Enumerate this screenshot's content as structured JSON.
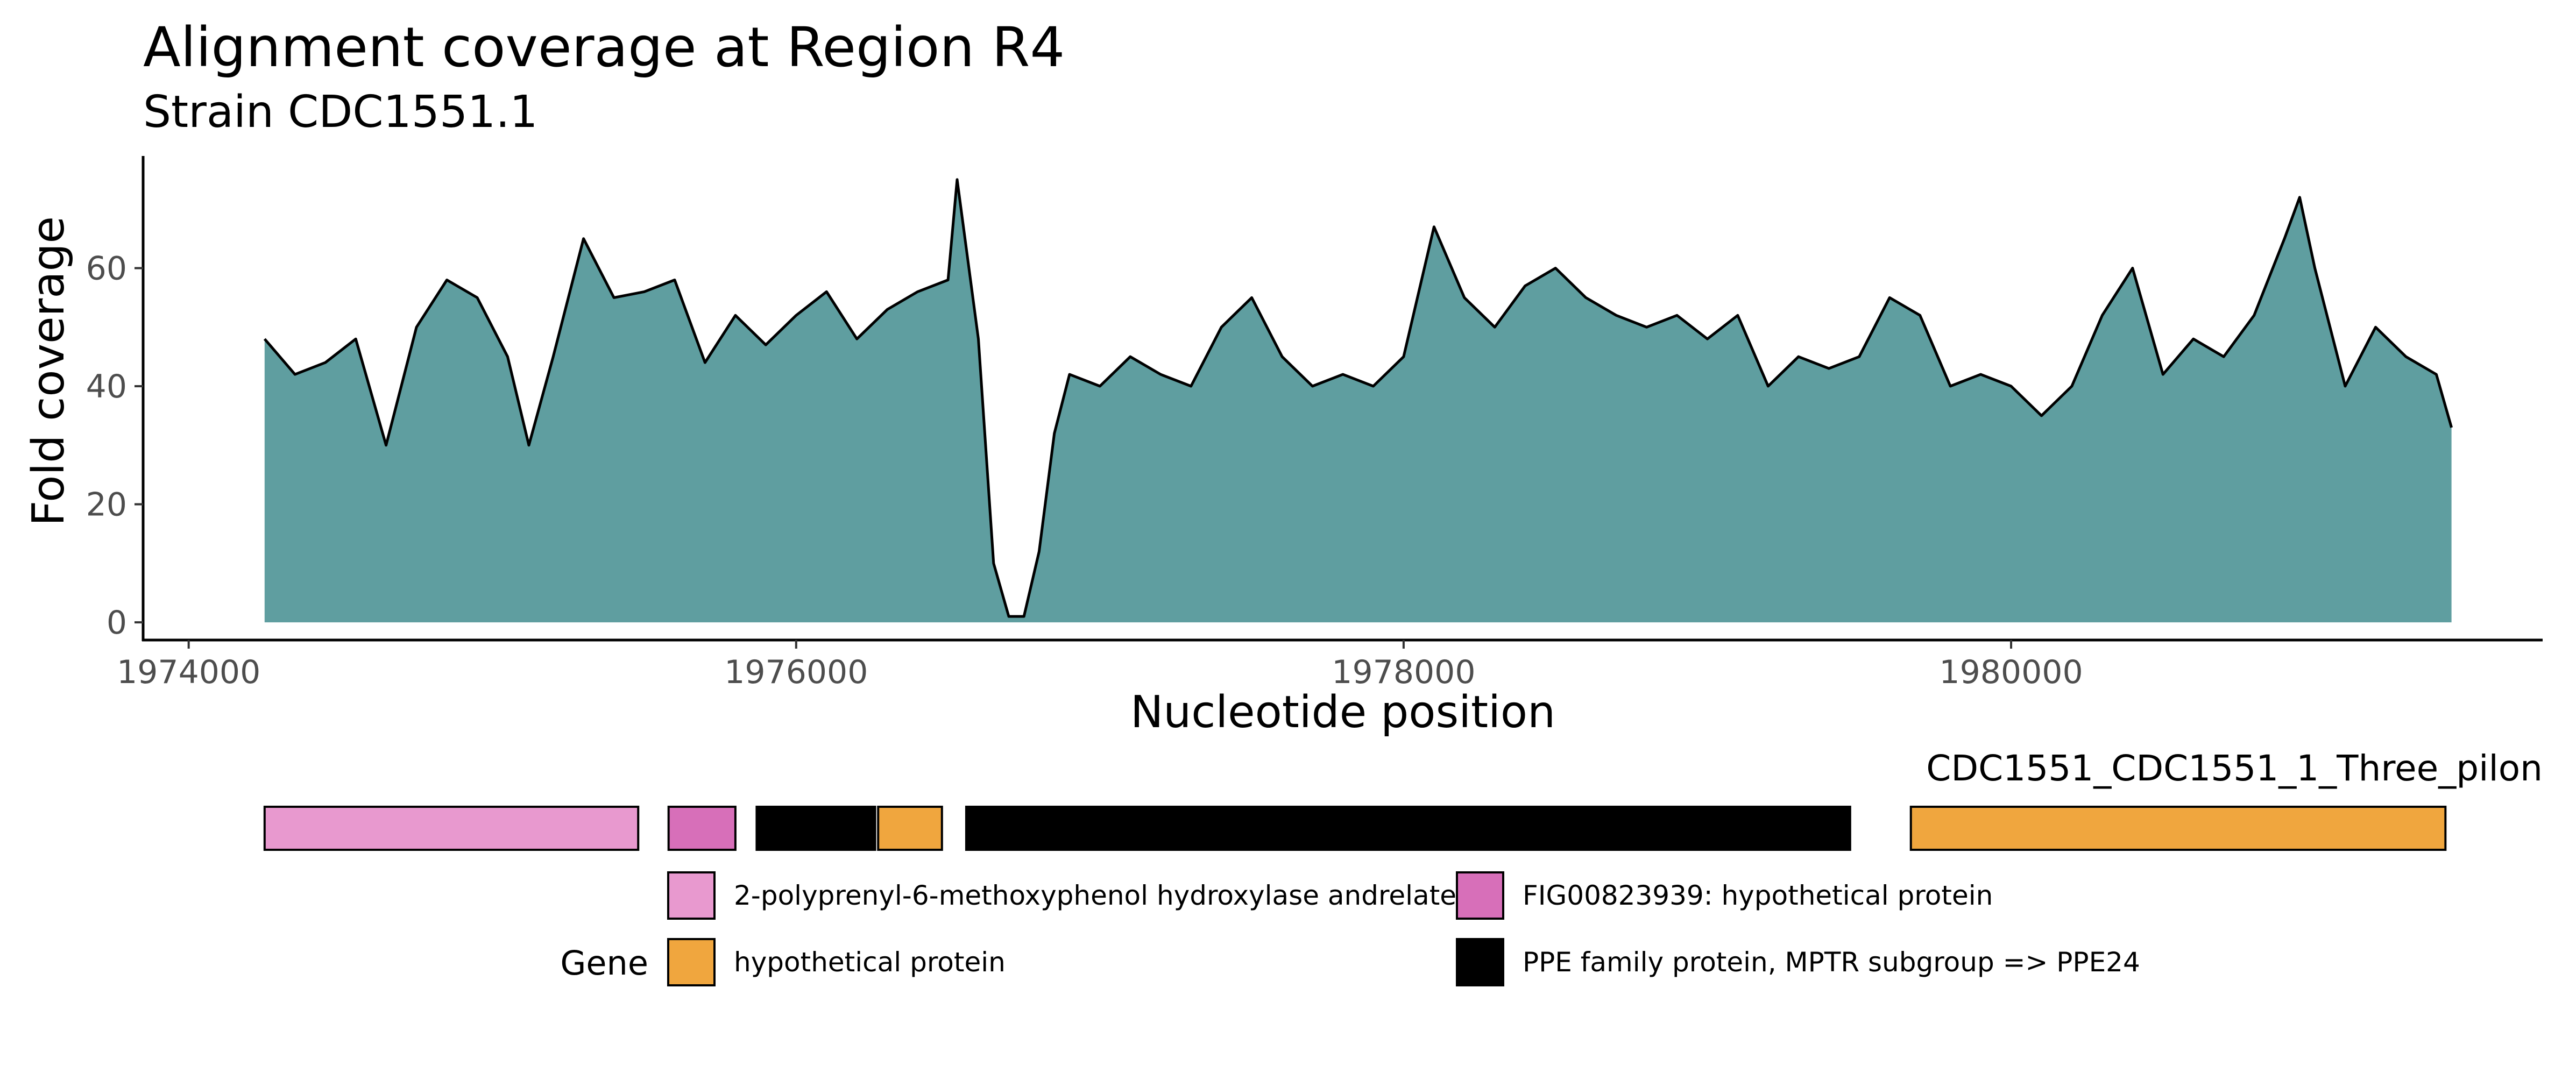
{
  "chart_data": {
    "type": "area",
    "title": "Alignment coverage at Region R4",
    "subtitle": "Strain CDC1551.1",
    "xlabel": "Nucleotide position",
    "ylabel": "Fold coverage",
    "xlim": [
      1973850,
      1981750
    ],
    "ylim": [
      -3,
      79
    ],
    "x_ticks": [
      1974000,
      1976000,
      1978000,
      1980000
    ],
    "y_ticks": [
      0,
      20,
      40,
      60
    ],
    "grid": false,
    "fill_color": "#5f9ea0",
    "line_color": "#000000",
    "x": [
      1974250,
      1974350,
      1974450,
      1974550,
      1974650,
      1974750,
      1974850,
      1974950,
      1975050,
      1975120,
      1975200,
      1975300,
      1975400,
      1975500,
      1975600,
      1975700,
      1975800,
      1975900,
      1976000,
      1976100,
      1976200,
      1976300,
      1976400,
      1976500,
      1976530,
      1976600,
      1976650,
      1976700,
      1976750,
      1976800,
      1976850,
      1976900,
      1977000,
      1977100,
      1977200,
      1977300,
      1977400,
      1977500,
      1977600,
      1977700,
      1977800,
      1977900,
      1978000,
      1978100,
      1978200,
      1978300,
      1978400,
      1978500,
      1978600,
      1978700,
      1978800,
      1978900,
      1979000,
      1979100,
      1979200,
      1979300,
      1979400,
      1979500,
      1979600,
      1979700,
      1979800,
      1979900,
      1980000,
      1980100,
      1980200,
      1980300,
      1980400,
      1980500,
      1980600,
      1980700,
      1980800,
      1980900,
      1980950,
      1981000,
      1981100,
      1981200,
      1981300,
      1981400,
      1981450
    ],
    "y": [
      48,
      42,
      44,
      48,
      30,
      50,
      58,
      55,
      45,
      30,
      45,
      65,
      55,
      56,
      58,
      44,
      52,
      47,
      52,
      56,
      48,
      53,
      56,
      58,
      75,
      48,
      10,
      1,
      1,
      12,
      32,
      42,
      40,
      45,
      42,
      40,
      50,
      55,
      45,
      40,
      42,
      40,
      45,
      67,
      55,
      50,
      57,
      60,
      55,
      52,
      50,
      52,
      48,
      52,
      40,
      45,
      43,
      45,
      55,
      52,
      40,
      42,
      40,
      35,
      40,
      52,
      60,
      42,
      48,
      45,
      52,
      65,
      72,
      60,
      40,
      50,
      45,
      42,
      33
    ],
    "genes": [
      {
        "start": 1974250,
        "end": 1975480,
        "color": "#e899cf"
      },
      {
        "start": 1975580,
        "end": 1975800,
        "color": "#d76fb9"
      },
      {
        "start": 1975870,
        "end": 1976260,
        "color": "#000000"
      },
      {
        "start": 1976270,
        "end": 1976480,
        "color": "#f0a63e"
      },
      {
        "start": 1976560,
        "end": 1979470,
        "color": "#000000"
      },
      {
        "start": 1979670,
        "end": 1981430,
        "color": "#f0a63e"
      }
    ],
    "track_label": "CDC1551_CDC1551_1_Three_pilon",
    "legend": {
      "title": "Gene",
      "position": "bottom",
      "entries": [
        {
          "label": "2-polyprenyl-6-methoxyphenol hydroxylase andrelate",
          "color": "#e899cf"
        },
        {
          "label": "FIG00823939: hypothetical protein",
          "color": "#d76fb9"
        },
        {
          "label": "hypothetical protein",
          "color": "#f0a63e"
        },
        {
          "label": "PPE family protein, MPTR subgroup => PPE24",
          "color": "#000000"
        }
      ]
    }
  }
}
